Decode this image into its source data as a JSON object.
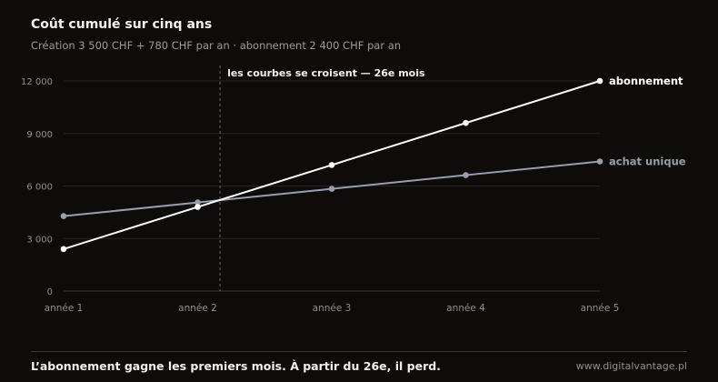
{
  "header": {
    "title": "Coût cumulé sur cinq ans",
    "subtitle": "Création 3 500 CHF + 780 CHF par an · abonnement 2 400 CHF par an"
  },
  "footer": {
    "takeaway": "L’abonnement gagne les premiers mois. À partir du 26e, il perd.",
    "source": "www.digitalvantage.pl"
  },
  "chart_data": {
    "type": "line",
    "title": "Coût cumulé sur cinq ans",
    "categories": [
      "année 1",
      "année 2",
      "année 3",
      "année 4",
      "année 5"
    ],
    "ylim": [
      0,
      12000
    ],
    "y_ticks": [
      0,
      3000,
      6000,
      9000,
      12000
    ],
    "y_tick_labels": [
      "0",
      "3 000",
      "6 000",
      "9 000",
      "12 000"
    ],
    "grid": true,
    "series": [
      {
        "name": "abonnement",
        "values": [
          2400,
          4800,
          7200,
          9600,
          12000
        ],
        "color": "#ffffff"
      },
      {
        "name": "achat unique",
        "values": [
          4280,
          5060,
          5840,
          6620,
          7400
        ],
        "color": "#9a9ea8"
      }
    ],
    "annotation": {
      "label": "les courbes se croisent — 26e mois",
      "x_month": 26
    }
  }
}
